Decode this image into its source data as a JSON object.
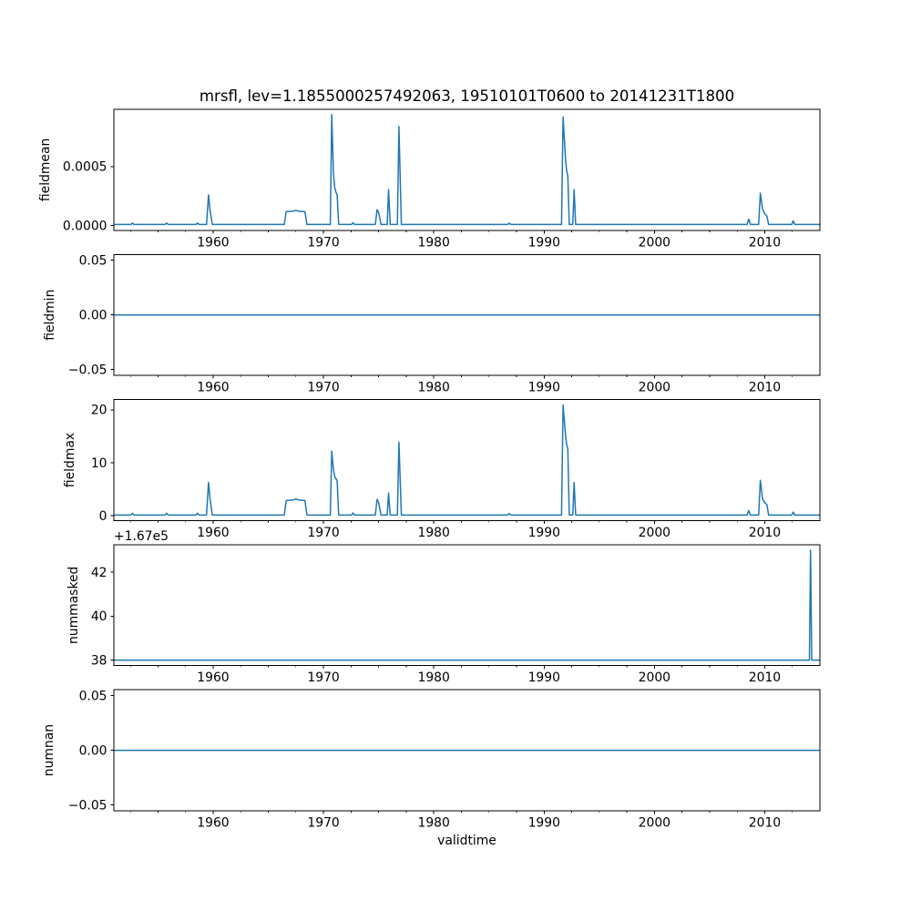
{
  "title": "mrsfl, lev=1.1855000257492063, 19510101T0600 to 20141231T1800",
  "line_color": "#1f77b4",
  "axis_color": "#000000",
  "background": "#ffffff",
  "xaxis": {
    "label": "validtime",
    "xlim": [
      1951.0,
      2015.0
    ],
    "major_ticks": [
      {
        "v": 1960,
        "label": "1960"
      },
      {
        "v": 1970,
        "label": "1970"
      },
      {
        "v": 1980,
        "label": "1980"
      },
      {
        "v": 1990,
        "label": "1990"
      },
      {
        "v": 2000,
        "label": "2000"
      },
      {
        "v": 2010,
        "label": "2010"
      }
    ],
    "minor_start": 1952.5,
    "minor_step": 2.5
  },
  "chart_data": [
    {
      "type": "line",
      "name": "fieldmean",
      "ylabel": "fieldmean",
      "ylim": [
        -4e-05,
        0.000985
      ],
      "y_offset": 0,
      "offset_text": "",
      "yticks": [
        {
          "v": 0.0,
          "label": "0.0000"
        },
        {
          "v": 0.0005,
          "label": "0.0005"
        }
      ],
      "points": [
        [
          1951.0,
          1e-05
        ],
        [
          1952.55,
          1e-05
        ],
        [
          1952.68,
          2.2e-05
        ],
        [
          1952.82,
          1e-05
        ],
        [
          1955.65,
          1e-05
        ],
        [
          1955.78,
          2.2e-05
        ],
        [
          1955.92,
          1e-05
        ],
        [
          1958.45,
          1e-05
        ],
        [
          1958.58,
          2.2e-05
        ],
        [
          1958.72,
          1e-05
        ],
        [
          1959.4,
          1e-05
        ],
        [
          1959.58,
          0.00026
        ],
        [
          1959.72,
          0.00013
        ],
        [
          1959.92,
          1e-05
        ],
        [
          1966.45,
          1e-05
        ],
        [
          1966.62,
          0.000118
        ],
        [
          1967.3,
          0.000122
        ],
        [
          1967.5,
          0.00013
        ],
        [
          1967.72,
          0.000122
        ],
        [
          1968.32,
          0.000118
        ],
        [
          1968.5,
          1e-05
        ],
        [
          1970.62,
          1e-05
        ],
        [
          1970.75,
          0.00094
        ],
        [
          1970.9,
          0.00045
        ],
        [
          1971.02,
          0.00032
        ],
        [
          1971.14,
          0.00028
        ],
        [
          1971.24,
          0.00026
        ],
        [
          1971.38,
          1e-05
        ],
        [
          1972.55,
          1e-05
        ],
        [
          1972.68,
          2.4e-05
        ],
        [
          1972.82,
          1e-05
        ],
        [
          1974.7,
          1e-05
        ],
        [
          1974.86,
          0.000135
        ],
        [
          1975.0,
          0.00011
        ],
        [
          1975.22,
          1e-05
        ],
        [
          1975.78,
          1e-05
        ],
        [
          1975.9,
          0.000305
        ],
        [
          1976.05,
          1e-05
        ],
        [
          1976.7,
          1e-05
        ],
        [
          1976.84,
          0.00084
        ],
        [
          1977.06,
          1e-05
        ],
        [
          1986.7,
          1e-05
        ],
        [
          1986.84,
          2e-05
        ],
        [
          1986.98,
          1e-05
        ],
        [
          1991.58,
          1e-05
        ],
        [
          1991.72,
          0.00092
        ],
        [
          1991.95,
          0.00055
        ],
        [
          1992.05,
          0.00046
        ],
        [
          1992.15,
          0.00042
        ],
        [
          1992.28,
          1e-05
        ],
        [
          1992.6,
          1e-05
        ],
        [
          1992.72,
          0.000305
        ],
        [
          1992.86,
          1e-05
        ],
        [
          2008.4,
          1e-05
        ],
        [
          2008.55,
          5.5e-05
        ],
        [
          2008.7,
          1e-05
        ],
        [
          2009.45,
          1e-05
        ],
        [
          2009.6,
          0.000275
        ],
        [
          2009.8,
          0.00014
        ],
        [
          2010.0,
          0.0001
        ],
        [
          2010.2,
          8e-05
        ],
        [
          2010.35,
          1e-05
        ],
        [
          2012.45,
          1e-05
        ],
        [
          2012.58,
          4e-05
        ],
        [
          2012.72,
          1e-05
        ],
        [
          2014.99,
          1e-05
        ]
      ]
    },
    {
      "type": "line",
      "name": "fieldmin",
      "ylabel": "fieldmin",
      "ylim": [
        -0.0553,
        0.0553
      ],
      "y_offset": 0,
      "offset_text": "",
      "yticks": [
        {
          "v": -0.05,
          "label": "−0.05"
        },
        {
          "v": 0.0,
          "label": "0.00"
        },
        {
          "v": 0.05,
          "label": "0.05"
        }
      ],
      "points": [
        [
          1951.0,
          0.0
        ],
        [
          2014.99,
          0.0
        ]
      ]
    },
    {
      "type": "line",
      "name": "fieldmax",
      "ylabel": "fieldmax",
      "ylim": [
        -0.89,
        21.94
      ],
      "y_offset": 0,
      "offset_text": "",
      "yticks": [
        {
          "v": 0,
          "label": "0"
        },
        {
          "v": 10,
          "label": "10"
        },
        {
          "v": 20,
          "label": "20"
        }
      ],
      "points": [
        [
          1951.0,
          0.15
        ],
        [
          1952.55,
          0.15
        ],
        [
          1952.68,
          0.5
        ],
        [
          1952.82,
          0.15
        ],
        [
          1955.65,
          0.15
        ],
        [
          1955.78,
          0.5
        ],
        [
          1955.92,
          0.15
        ],
        [
          1958.45,
          0.15
        ],
        [
          1958.58,
          0.5
        ],
        [
          1958.72,
          0.15
        ],
        [
          1959.4,
          0.15
        ],
        [
          1959.58,
          6.3
        ],
        [
          1959.72,
          3.2
        ],
        [
          1959.92,
          0.15
        ],
        [
          1966.45,
          0.15
        ],
        [
          1966.62,
          2.9
        ],
        [
          1967.3,
          3.0
        ],
        [
          1967.5,
          3.2
        ],
        [
          1967.72,
          3.0
        ],
        [
          1968.32,
          2.9
        ],
        [
          1968.5,
          0.15
        ],
        [
          1970.62,
          0.15
        ],
        [
          1970.75,
          12.2
        ],
        [
          1970.9,
          8.8
        ],
        [
          1971.02,
          7.4
        ],
        [
          1971.14,
          7.0
        ],
        [
          1971.24,
          6.6
        ],
        [
          1971.38,
          0.15
        ],
        [
          1972.55,
          0.15
        ],
        [
          1972.68,
          0.55
        ],
        [
          1972.82,
          0.15
        ],
        [
          1974.7,
          0.15
        ],
        [
          1974.86,
          3.1
        ],
        [
          1975.0,
          2.5
        ],
        [
          1975.22,
          0.15
        ],
        [
          1975.78,
          0.15
        ],
        [
          1975.9,
          4.3
        ],
        [
          1976.05,
          0.15
        ],
        [
          1976.7,
          0.15
        ],
        [
          1976.84,
          13.9
        ],
        [
          1977.06,
          0.15
        ],
        [
          1986.7,
          0.15
        ],
        [
          1986.84,
          0.45
        ],
        [
          1986.98,
          0.15
        ],
        [
          1991.58,
          0.15
        ],
        [
          1991.72,
          20.9
        ],
        [
          1991.95,
          15.0
        ],
        [
          1992.05,
          13.4
        ],
        [
          1992.15,
          12.6
        ],
        [
          1992.28,
          0.15
        ],
        [
          1992.6,
          0.15
        ],
        [
          1992.72,
          6.3
        ],
        [
          1992.86,
          0.15
        ],
        [
          2008.4,
          0.15
        ],
        [
          2008.55,
          1.0
        ],
        [
          2008.7,
          0.15
        ],
        [
          2009.45,
          0.15
        ],
        [
          2009.6,
          6.7
        ],
        [
          2009.8,
          3.2
        ],
        [
          2010.0,
          2.5
        ],
        [
          2010.2,
          2.1
        ],
        [
          2010.35,
          0.15
        ],
        [
          2012.45,
          0.15
        ],
        [
          2012.58,
          0.7
        ],
        [
          2012.72,
          0.15
        ],
        [
          2014.99,
          0.15
        ]
      ]
    },
    {
      "type": "line",
      "name": "nummasked",
      "ylabel": "nummasked",
      "ylim": [
        37.75,
        43.25
      ],
      "y_offset": 167000,
      "offset_text": "+1.67e5",
      "yticks": [
        {
          "v": 38,
          "label": "38"
        },
        {
          "v": 40,
          "label": "40"
        },
        {
          "v": 42,
          "label": "42"
        }
      ],
      "points": [
        [
          1951.0,
          167038
        ],
        [
          2014.05,
          167038
        ],
        [
          2014.15,
          167043
        ],
        [
          2014.26,
          167038
        ],
        [
          2014.99,
          167038
        ]
      ]
    },
    {
      "type": "line",
      "name": "numnan",
      "ylabel": "numnan",
      "ylim": [
        -0.0553,
        0.0553
      ],
      "y_offset": 0,
      "offset_text": "",
      "yticks": [
        {
          "v": -0.05,
          "label": "−0.05"
        },
        {
          "v": 0.0,
          "label": "0.00"
        },
        {
          "v": 0.05,
          "label": "0.05"
        }
      ],
      "points": [
        [
          1951.0,
          0.0
        ],
        [
          2014.99,
          0.0
        ]
      ]
    }
  ]
}
